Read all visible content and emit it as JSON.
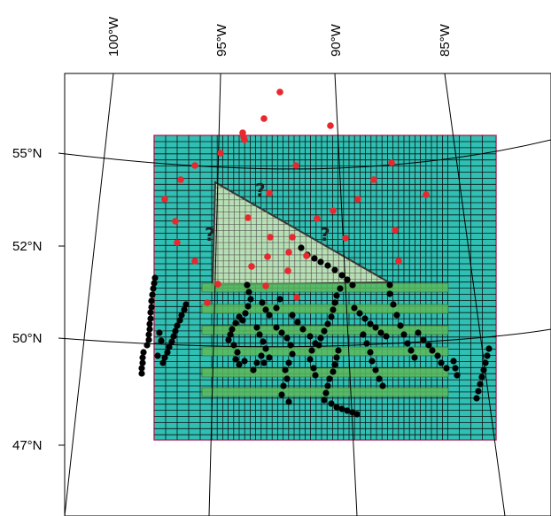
{
  "map": {
    "lon_labels": [
      "100°W",
      "95°W",
      "90°W",
      "85°W"
    ],
    "lat_labels": [
      "55°N",
      "52°N",
      "50°N",
      "47°N"
    ],
    "colors": {
      "grid_fill": "#2fbfb3",
      "grid_border": "#b03060",
      "grid_lines": "#111111",
      "band_fill": "#5cb85c",
      "triangle_fill": "#c8e6b8",
      "triangle_edge": "#333333",
      "red_points": "#e8282e",
      "black_points": "#000000",
      "graticule": "#000000"
    },
    "question_marks": [
      "?",
      "?",
      "?"
    ]
  }
}
